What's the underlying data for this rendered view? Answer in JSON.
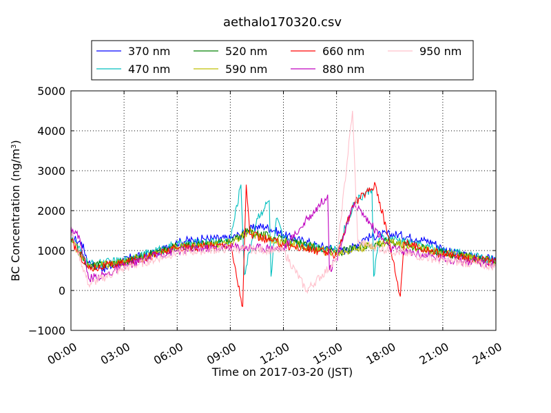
{
  "chart_data": {
    "type": "line",
    "title": "aethalo170320.csv",
    "xlabel": "Time on 2017-03-20 (JST)",
    "ylabel": "BC Concentration (ng/m",
    "ylabel_sup": "3",
    "ylabel_tail": ")",
    "xlim": [
      "00:00",
      "24:00"
    ],
    "ylim": [
      -1000,
      5000
    ],
    "grid": true,
    "legend_position": "top-center",
    "x_ticks": [
      "00:00",
      "03:00",
      "06:00",
      "09:00",
      "12:00",
      "15:00",
      "18:00",
      "21:00",
      "24:00"
    ],
    "y_ticks": [
      "5000",
      "4000",
      "3000",
      "2000",
      "1000",
      "0",
      "−1000"
    ],
    "series": [
      {
        "name": "370 nm",
        "color": "#0000ff",
        "offset": 200,
        "points": [
          [
            0,
            1400
          ],
          [
            0.3,
            1250
          ],
          [
            0.6,
            1200
          ],
          [
            1.0,
            700
          ],
          [
            1.5,
            600
          ],
          [
            2.0,
            550
          ],
          [
            2.5,
            650
          ],
          [
            3.0,
            750
          ],
          [
            3.5,
            850
          ],
          [
            4.0,
            850
          ],
          [
            4.5,
            900
          ],
          [
            5.0,
            950
          ],
          [
            5.5,
            1100
          ],
          [
            6.0,
            1200
          ],
          [
            6.5,
            1250
          ],
          [
            7.0,
            1250
          ],
          [
            7.5,
            1300
          ],
          [
            8.0,
            1300
          ],
          [
            8.5,
            1300
          ],
          [
            9.0,
            1300
          ],
          [
            9.5,
            1400
          ],
          [
            10.0,
            1500
          ],
          [
            10.5,
            1600
          ],
          [
            11.0,
            1600
          ],
          [
            11.5,
            1500
          ],
          [
            12.0,
            1400
          ],
          [
            12.5,
            1300
          ],
          [
            13.0,
            1250
          ],
          [
            13.5,
            1200
          ],
          [
            14.0,
            1100
          ],
          [
            14.5,
            1100
          ],
          [
            15.0,
            1000
          ],
          [
            15.5,
            1000
          ],
          [
            16.0,
            1100
          ],
          [
            16.5,
            1300
          ],
          [
            17.0,
            1350
          ],
          [
            17.5,
            1400
          ],
          [
            18.0,
            1400
          ],
          [
            18.5,
            1400
          ],
          [
            19.0,
            1350
          ],
          [
            19.5,
            1300
          ],
          [
            20.0,
            1250
          ],
          [
            20.5,
            1200
          ],
          [
            21.0,
            1050
          ],
          [
            21.5,
            950
          ],
          [
            22.0,
            900
          ],
          [
            22.5,
            850
          ],
          [
            23.0,
            850
          ],
          [
            23.5,
            800
          ],
          [
            24.0,
            780
          ]
        ]
      },
      {
        "name": "470 nm",
        "color": "#00bfbf",
        "offset": 120,
        "points": [
          [
            0,
            1350
          ],
          [
            1.0,
            650
          ],
          [
            3.0,
            750
          ],
          [
            6.0,
            1150
          ],
          [
            9.0,
            1250
          ],
          [
            9.6,
            2650
          ],
          [
            9.8,
            400
          ],
          [
            10.5,
            1800
          ],
          [
            11.2,
            2250
          ],
          [
            11.3,
            350
          ],
          [
            11.6,
            1800
          ],
          [
            12.0,
            1300
          ],
          [
            15.0,
            1000
          ],
          [
            16.0,
            2200
          ],
          [
            17.0,
            2550
          ],
          [
            17.1,
            350
          ],
          [
            17.4,
            1300
          ],
          [
            18.0,
            1300
          ],
          [
            21.0,
            1000
          ],
          [
            24.0,
            750
          ]
        ]
      },
      {
        "name": "520 nm",
        "color": "#008000",
        "offset": 80,
        "points": [
          [
            0,
            1300
          ],
          [
            1.0,
            600
          ],
          [
            3.0,
            720
          ],
          [
            6.0,
            1100
          ],
          [
            9.0,
            1200
          ],
          [
            10.0,
            1500
          ],
          [
            12.0,
            1250
          ],
          [
            15.0,
            950
          ],
          [
            18.0,
            1250
          ],
          [
            21.0,
            950
          ],
          [
            24.0,
            720
          ]
        ]
      },
      {
        "name": "590 nm",
        "color": "#bfbf00",
        "offset": 60,
        "points": [
          [
            0,
            1280
          ],
          [
            1.0,
            580
          ],
          [
            3.0,
            700
          ],
          [
            6.0,
            1080
          ],
          [
            9.0,
            1180
          ],
          [
            10.0,
            1450
          ],
          [
            12.0,
            1200
          ],
          [
            15.0,
            930
          ],
          [
            18.0,
            1230
          ],
          [
            21.0,
            930
          ],
          [
            24.0,
            710
          ]
        ]
      },
      {
        "name": "660 nm",
        "color": "#ff0000",
        "offset": 40,
        "points": [
          [
            0,
            1250
          ],
          [
            1.0,
            550
          ],
          [
            3.0,
            680
          ],
          [
            6.0,
            1050
          ],
          [
            9.0,
            1150
          ],
          [
            9.7,
            -400
          ],
          [
            9.9,
            2650
          ],
          [
            10.1,
            1400
          ],
          [
            12.0,
            1150
          ],
          [
            15.0,
            900
          ],
          [
            16.0,
            2200
          ],
          [
            17.2,
            2650
          ],
          [
            18.0,
            1200
          ],
          [
            18.6,
            -150
          ],
          [
            18.8,
            1200
          ],
          [
            21.0,
            900
          ],
          [
            24.0,
            700
          ]
        ]
      },
      {
        "name": "880 nm",
        "color": "#bf00bf",
        "offset": 0,
        "points": [
          [
            0,
            1600
          ],
          [
            0.5,
            1300
          ],
          [
            1.0,
            300
          ],
          [
            2.0,
            400
          ],
          [
            3.0,
            600
          ],
          [
            5.0,
            900
          ],
          [
            6.0,
            1000
          ],
          [
            9.0,
            1100
          ],
          [
            12.0,
            1050
          ],
          [
            14.5,
            2400
          ],
          [
            14.6,
            500
          ],
          [
            15.0,
            800
          ],
          [
            16.0,
            2200
          ],
          [
            18.0,
            1050
          ],
          [
            21.0,
            800
          ],
          [
            24.0,
            650
          ]
        ]
      },
      {
        "name": "950 nm",
        "color": "#ffc0cb",
        "offset": -20,
        "points": [
          [
            0,
            1500
          ],
          [
            1.0,
            150
          ],
          [
            3.0,
            550
          ],
          [
            6.0,
            950
          ],
          [
            9.0,
            1050
          ],
          [
            12.0,
            1000
          ],
          [
            13.3,
            0
          ],
          [
            15.0,
            750
          ],
          [
            15.9,
            4500
          ],
          [
            16.2,
            1200
          ],
          [
            18.0,
            1000
          ],
          [
            21.0,
            750
          ],
          [
            24.0,
            600
          ]
        ]
      }
    ]
  }
}
